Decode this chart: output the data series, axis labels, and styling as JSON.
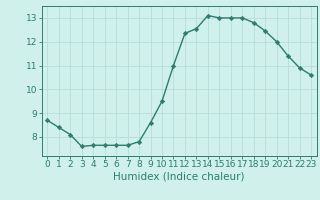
{
  "x": [
    0,
    1,
    2,
    3,
    4,
    5,
    6,
    7,
    8,
    9,
    10,
    11,
    12,
    13,
    14,
    15,
    16,
    17,
    18,
    19,
    20,
    21,
    22,
    23
  ],
  "y": [
    8.7,
    8.4,
    8.1,
    7.6,
    7.65,
    7.65,
    7.65,
    7.65,
    7.8,
    8.6,
    9.5,
    11.0,
    12.35,
    12.55,
    13.1,
    13.0,
    13.0,
    13.0,
    12.8,
    12.45,
    12.0,
    11.4,
    10.9,
    10.6
  ],
  "xlabel": "Humidex (Indice chaleur)",
  "ylim": [
    7.2,
    13.5
  ],
  "xlim": [
    -0.5,
    23.5
  ],
  "yticks": [
    8,
    9,
    10,
    11,
    12,
    13
  ],
  "xticks": [
    0,
    1,
    2,
    3,
    4,
    5,
    6,
    7,
    8,
    9,
    10,
    11,
    12,
    13,
    14,
    15,
    16,
    17,
    18,
    19,
    20,
    21,
    22,
    23
  ],
  "line_color": "#2e7d6e",
  "marker_color": "#2e7d6e",
  "bg_color": "#cff0eb",
  "grid_color": "#b8ddd8",
  "axis_color": "#2e7d6e",
  "tick_label_color": "#2e7d6e",
  "xlabel_color": "#2e7d6e",
  "xlabel_fontsize": 7.5,
  "tick_fontsize": 6.5
}
